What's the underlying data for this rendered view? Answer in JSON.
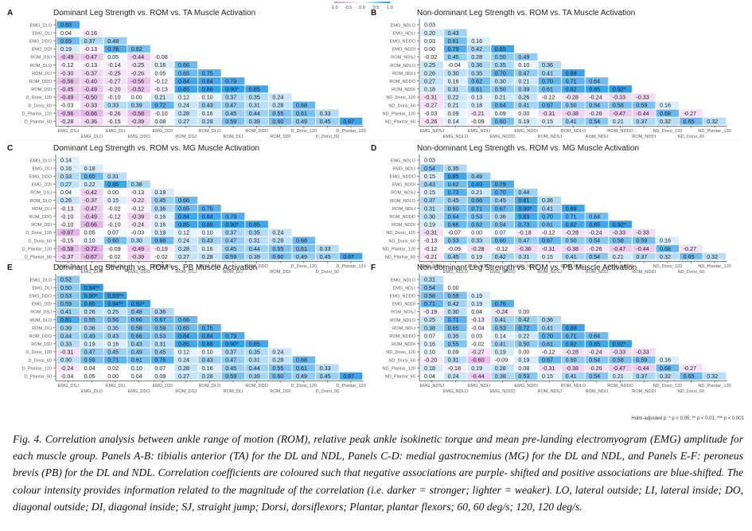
{
  "legend": {
    "ticks": [
      "-1.0",
      "-0.5",
      "0.0",
      "0.5",
      "1.0"
    ]
  },
  "significance_note": "Holm-adjusted p: * p < 0.05; ** p < 0.01; *** p < 0.001",
  "caption": {
    "label": "Fig. 4.",
    "text": "Correlation analysis between ankle range of motion (ROM), relative peak ankle isokinetic torque and mean pre-landing electromyogram (EMG) amplitude for each muscle group. Panels A-B: tibialis anterior (TA) for the DL and NDL, Panels C-D: medial gastrocnemius (MG) for the DL and NDL, and Panels E-F: peroneus brevis (PB) for the DL and NDL. Correlation coefficients are coloured such that negative associations are purple- shifted and positive associations are blue-shifted. The colour intensity provides information related to the magnitude of the correlation (i.e. darker = stronger; lighter = weaker). LO, lateral outside; LI, lateral inside; DO, diagonal outside; DI, diagonal inside; SJ, straight jump; Dorsi, dorsiflexors; Plantar, plantar flexors; 60, 60 deg/s; 120, 120 deg/s."
  },
  "colors": {
    "positive": "#1e96e8",
    "negative": "#d88ee0",
    "neutral": "#ffffff"
  },
  "chart_data": [
    {
      "type": "heatmap",
      "panel": "A",
      "title": "Dominant Leg Strength vs. ROM vs. TA Muscle Activation",
      "row_labels": [
        "EMG_DLO",
        "EMG_DLI",
        "EMG_DDO",
        "EMG_DDI",
        "ROM_DSJ",
        "ROM_DLO",
        "ROM_DLI",
        "ROM_DDO",
        "ROM_DDI",
        "D_Dorsi_120",
        "D_Dorsi_60",
        "D_Plantar_120",
        "D_Plantar_60"
      ],
      "col_labels": [
        "EMG_DSJ",
        "EMG_DLO",
        "EMG_DLI",
        "EMG_DDO",
        "EMG_DDI",
        "ROM_DSJ",
        "ROM_DLO",
        "ROM_DLI",
        "ROM_DDO",
        "ROM_DDI",
        "D_Dorsi_120",
        "D_Dorsi_60",
        "D_Plantar_120"
      ],
      "values": [
        [
          "0.83"
        ],
        [
          "0.04",
          "-0.16"
        ],
        [
          "0.65",
          "0.37",
          "0.48"
        ],
        [
          "0.19",
          "-0.13",
          "0.78",
          "0.62"
        ],
        [
          "-0.49",
          "-0.47",
          "0.05",
          "-0.44",
          "-0.08"
        ],
        [
          "-0.12",
          "-0.13",
          "-0.14",
          "-0.25",
          "0.16",
          "0.66"
        ],
        [
          "-0.30",
          "-0.37",
          "-0.25",
          "-0.26",
          "0.05",
          "0.65",
          "0.75"
        ],
        [
          "-0.56",
          "-0.40",
          "-0.27",
          "-0.56",
          "-0.12",
          "0.84",
          "0.84",
          "0.79"
        ],
        [
          "-0.45",
          "-0.49",
          "-0.20",
          "-0.52",
          "-0.13",
          "0.85",
          "0.88",
          "0.90*",
          "0.85"
        ],
        [
          "-0.49",
          "-0.50",
          "-0.10",
          "0.00",
          "0.21",
          "0.12",
          "0.10",
          "0.37",
          "0.35",
          "0.24"
        ],
        [
          "-0.03",
          "-0.33",
          "0.33",
          "0.39",
          "0.72",
          "0.24",
          "0.43",
          "0.47",
          "0.31",
          "0.28",
          "0.68"
        ],
        [
          "-0.56",
          "-0.66",
          "-0.26",
          "-0.58",
          "-0.10",
          "0.28",
          "0.16",
          "0.45",
          "0.44",
          "0.55",
          "0.61",
          "0.33"
        ],
        [
          "-0.28",
          "-0.36",
          "-0.15",
          "-0.39",
          "0.08",
          "0.27",
          "0.28",
          "0.59",
          "0.39",
          "0.60",
          "0.49",
          "0.45",
          "0.87"
        ]
      ],
      "scale": [
        -1.0,
        1.0
      ]
    },
    {
      "type": "heatmap",
      "panel": "B",
      "title": "Non-dominant Leg Strength vs. ROM vs. TA Muscle Activation",
      "row_labels": [
        "EMG_NDLO",
        "EMG_NDLI",
        "EMG_NDDO",
        "EMG_NDDI",
        "ROM_NDSJ",
        "ROM_NDLO",
        "ROM_NDLI",
        "ROM_NDDO",
        "ROM_NDDI",
        "ND_Dorsi_120",
        "ND_Dorsi_60",
        "ND_Plantar_120",
        "ND_Plantar_60"
      ],
      "col_labels": [
        "EMG_NDSJ",
        "EMG_NDLO",
        "EMG_NDLI",
        "EMG_NDDO",
        "EMG_NDDI",
        "ROM_NDSJ",
        "ROM_NDLO",
        "ROM_NDLI",
        "ROM_NDDO",
        "ROM_NDDI",
        "ND_Dorsi_120",
        "ND_Dorsi_60",
        "ND_Plantar_120"
      ],
      "values": [
        [
          "0.03"
        ],
        [
          "0.20",
          "0.43"
        ],
        [
          "0.03",
          "0.61",
          "0.16"
        ],
        [
          "0.00",
          "0.79",
          "0.42",
          "0.85"
        ],
        [
          "-0.02",
          "0.45",
          "0.28",
          "0.50",
          "0.49"
        ],
        [
          "0.25",
          "-0.04",
          "0.36",
          "0.35",
          "0.10",
          "0.36"
        ],
        [
          "0.26",
          "0.30",
          "0.35",
          "0.70",
          "0.47",
          "0.41",
          "0.88"
        ],
        [
          "0.27",
          "0.16",
          "0.62",
          "0.30",
          "0.21",
          "0.70",
          "0.71",
          "0.64"
        ],
        [
          "0.18",
          "0.31",
          "0.61",
          "0.50",
          "0.39",
          "0.61",
          "0.82",
          "0.85",
          "0.92*"
        ],
        [
          "-0.31",
          "0.22",
          "0.13",
          "0.21",
          "0.26",
          "-0.12",
          "-0.28",
          "-0.24",
          "-0.33",
          "-0.33"
        ],
        [
          "-0.27",
          "0.21",
          "0.18",
          "0.64",
          "0.41",
          "0.67",
          "0.50",
          "0.54",
          "0.58",
          "0.59",
          "0.16"
        ],
        [
          "-0.03",
          "0.09",
          "-0.21",
          "0.09",
          "0.00",
          "-0.31",
          "-0.38",
          "-0.26",
          "-0.47",
          "-0.44",
          "0.68",
          "-0.27"
        ],
        [
          "-0.26",
          "0.14",
          "-0.09",
          "0.60",
          "0.19",
          "0.15",
          "0.41",
          "0.54",
          "0.21",
          "0.37",
          "0.32",
          "0.65",
          "0.32"
        ]
      ],
      "scale": [
        -1.0,
        1.0
      ]
    },
    {
      "type": "heatmap",
      "panel": "C",
      "title": "Dominant Leg Strength vs. ROM vs. MG Muscle Activation",
      "row_labels": [
        "EMG_DLO",
        "EMG_DLI",
        "EMG_DDO",
        "EMG_DDI",
        "ROM_DSJ",
        "ROM_DLO",
        "ROM_DLI",
        "ROM_DDO",
        "ROM_DDI",
        "D_Dorsi_120",
        "D_Dorsi_60",
        "D_Plantar_120",
        "D_Plantar_60"
      ],
      "col_labels": [
        "EMG_DSJ",
        "EMG_DLO",
        "EMG_DLI",
        "EMG_DDO",
        "EMG_DDI",
        "ROM_DSJ",
        "ROM_DLO",
        "ROM_DLI",
        "ROM_DDO",
        "ROM_DDI",
        "D_Dorsi_120",
        "D_Dorsi_60",
        "D_Plantar_120"
      ],
      "values": [
        [
          "0.14"
        ],
        [
          "0.16",
          "0.18"
        ],
        [
          "0.33",
          "0.65",
          "0.31"
        ],
        [
          "0.27",
          "0.22",
          "0.85",
          "0.38"
        ],
        [
          "0.04",
          "-0.42",
          "0.00",
          "-0.13",
          "0.19"
        ],
        [
          "0.26",
          "-0.37",
          "0.15",
          "-0.22",
          "0.45",
          "0.66"
        ],
        [
          "-0.13",
          "-0.47",
          "-0.02",
          "-0.12",
          "0.36",
          "0.65",
          "0.75"
        ],
        [
          "-0.10",
          "-0.49",
          "-0.12",
          "-0.39",
          "0.16",
          "0.84",
          "0.84",
          "0.79"
        ],
        [
          "-0.10",
          "-0.66",
          "-0.10",
          "-0.24",
          "0.16",
          "0.85",
          "0.88",
          "0.90*",
          "0.85"
        ],
        [
          "-0.67",
          "0.05",
          "0.07",
          "-0.03",
          "0.19",
          "0.12",
          "0.10",
          "0.37",
          "0.35",
          "0.24"
        ],
        [
          "-0.15",
          "0.10",
          "0.60",
          "0.30",
          "0.66",
          "0.24",
          "0.43",
          "0.47",
          "0.31",
          "0.28",
          "0.68"
        ],
        [
          "-0.58",
          "-0.72",
          "-0.09",
          "-0.49",
          "-0.19",
          "0.28",
          "0.16",
          "0.45",
          "0.44",
          "0.55",
          "0.61",
          "0.33"
        ],
        [
          "-0.37",
          "-0.67",
          "-0.02",
          "-0.39",
          "-0.02",
          "0.27",
          "0.28",
          "0.59",
          "0.39",
          "0.60",
          "0.49",
          "0.45",
          "0.87"
        ]
      ],
      "scale": [
        -1.0,
        1.0
      ]
    },
    {
      "type": "heatmap",
      "panel": "D",
      "title": "Non-dominant Leg Strength vs. ROM vs. MG Muscle Activation",
      "row_labels": [
        "EMG_NDLO",
        "EMG_NDLI",
        "EMG_NDDO",
        "EMG_NDDI",
        "ROM_NDSJ",
        "ROM_NDLO",
        "ROM_NDLI",
        "ROM_NDDO",
        "ROM_NDDI",
        "ND_Dorsi_120",
        "ND_Dorsi_60",
        "ND_Plantar_120",
        "ND_Plantar_60"
      ],
      "col_labels": [
        "EMG_NDSJ",
        "EMG_NDLO",
        "EMG_NDLI",
        "EMG_NDDO",
        "EMG_NDDI",
        "ROM_NDSJ",
        "ROM_NDLO",
        "ROM_NDLI",
        "ROM_NDDO",
        "ROM_NDDI",
        "ND_Dorsi_120",
        "ND_Dorsi_60",
        "ND_Plantar_120"
      ],
      "values": [
        [
          "0.03"
        ],
        [
          "0.54",
          "0.35"
        ],
        [
          "0.15",
          "0.85",
          "0.49"
        ],
        [
          "0.43",
          "0.62",
          "0.83",
          "0.79"
        ],
        [
          "0.15",
          "0.73",
          "0.21",
          "0.70",
          "0.44"
        ],
        [
          "0.37",
          "0.45",
          "0.66",
          "0.45",
          "0.81",
          "0.36"
        ],
        [
          "0.31",
          "0.60",
          "0.71",
          "0.67",
          "0.90*",
          "0.41",
          "0.88"
        ],
        [
          "0.30",
          "0.64",
          "0.53",
          "0.36",
          "0.83",
          "0.70",
          "0.71",
          "0.64"
        ],
        [
          "0.19",
          "0.66",
          "0.62",
          "0.54",
          "0.73",
          "0.61",
          "0.82",
          "0.85",
          "0.92*"
        ],
        [
          "-0.31",
          "-0.07",
          "0.00",
          "0.07",
          "-0.18",
          "-0.12",
          "-0.28",
          "-0.24",
          "-0.33",
          "-0.33"
        ],
        [
          "-0.13",
          "0.53",
          "0.33",
          "0.60",
          "0.47",
          "0.67",
          "0.50",
          "0.54",
          "0.58",
          "0.59",
          "0.16"
        ],
        [
          "-0.12",
          "-0.09",
          "-0.28",
          "-0.12",
          "-0.36",
          "-0.31",
          "-0.38",
          "-0.26",
          "-0.47",
          "-0.44",
          "0.68",
          "-0.27"
        ],
        [
          "-0.21",
          "0.45",
          "0.19",
          "0.42",
          "0.31",
          "0.15",
          "0.41",
          "0.54",
          "0.21",
          "0.37",
          "0.32",
          "0.65",
          "0.32"
        ]
      ],
      "scale": [
        -1.0,
        1.0
      ]
    },
    {
      "type": "heatmap",
      "panel": "E",
      "title": "Dominant Leg Strength vs. ROM vs. PB Muscle Activation",
      "row_labels": [
        "EMG_DLO",
        "EMG_DLI",
        "EMG_DDO",
        "EMG_DDI",
        "ROM_DSJ",
        "ROM_DLO",
        "ROM_DLI",
        "ROM_DDO",
        "ROM_DDI",
        "D_Dorsi_120",
        "D_Dorsi_60",
        "D_Plantar_120",
        "D_Plantar_60"
      ],
      "col_labels": [
        "EMG_DSJ",
        "EMG_DLO",
        "EMG_DLI",
        "EMG_DDO",
        "EMG_DDI",
        "ROM_DSJ",
        "ROM_DLO",
        "ROM_DLI",
        "ROM_DDO",
        "ROM_DDI",
        "D_Dorsi_120",
        "D_Dorsi_60",
        "D_Plantar_120"
      ],
      "values": [
        [
          "0.52"
        ],
        [
          "0.50",
          "0.94**"
        ],
        [
          "0.53",
          "0.90*",
          "0.93**"
        ],
        [
          "0.59",
          "0.85",
          "0.94**",
          "0.92*"
        ],
        [
          "0.41",
          "0.26",
          "0.25",
          "0.48",
          "0.36"
        ],
        [
          "0.81",
          "0.55",
          "0.56",
          "0.66",
          "0.67",
          "0.66"
        ],
        [
          "0.39",
          "0.36",
          "0.35",
          "0.58",
          "0.59",
          "0.65",
          "0.75"
        ],
        [
          "0.44",
          "0.49",
          "0.43",
          "0.66",
          "0.53",
          "0.84",
          "0.84",
          "0.79"
        ],
        [
          "0.33",
          "0.19",
          "0.16",
          "0.43",
          "0.31",
          "0.85",
          "0.88",
          "0.90*",
          "0.85"
        ],
        [
          "-0.31",
          "0.47",
          "0.45",
          "0.49",
          "0.45",
          "0.12",
          "0.10",
          "0.37",
          "0.35",
          "0.24"
        ],
        [
          "0.30",
          "0.59",
          "0.71",
          "0.61",
          "0.76",
          "0.24",
          "0.43",
          "0.47",
          "0.31",
          "0.28",
          "0.68"
        ],
        [
          "-0.24",
          "0.04",
          "0.02",
          "0.10",
          "0.07",
          "0.28",
          "0.16",
          "0.45",
          "0.44",
          "0.55",
          "0.61",
          "0.33"
        ],
        [
          "-0.04",
          "0.05",
          "0.00",
          "0.04",
          "0.09",
          "0.27",
          "0.28",
          "0.59",
          "0.39",
          "0.60",
          "0.49",
          "0.45",
          "0.87"
        ]
      ],
      "scale": [
        -1.0,
        1.0
      ]
    },
    {
      "type": "heatmap",
      "panel": "F",
      "title": "Non-dominant Leg Strength vs. ROM vs. PB Muscle Activation",
      "row_labels": [
        "EMG_NDLO",
        "EMG_NDLI",
        "EMG_NDDO",
        "EMG_NDDI",
        "ROM_NDSJ",
        "ROM_NDLO",
        "ROM_NDLI",
        "ROM_NDDO",
        "ROM_NDDI",
        "ND_Dorsi_120",
        "ND_Dorsi_60",
        "ND_Plantar_120",
        "ND_Plantar_60"
      ],
      "col_labels": [
        "EMG_NDSJ",
        "EMG_NDLO",
        "EMG_NDLI",
        "EMG_NDDO",
        "EMG_NDDI",
        "ROM_NDSJ",
        "ROM_NDLO",
        "ROM_NDLI",
        "ROM_NDDO",
        "ROM_NDDI",
        "ND_Dorsi_120",
        "ND_Dorsi_60",
        "ND_Plantar_120"
      ],
      "values": [
        [
          "0.31"
        ],
        [
          "0.54",
          "0.00"
        ],
        [
          "0.58",
          "0.59",
          "0.19"
        ],
        [
          "0.71",
          "0.42",
          "0.19",
          "0.76"
        ],
        [
          "-0.19",
          "0.30",
          "0.04",
          "-0.24",
          "0.00"
        ],
        [
          "0.25",
          "0.71",
          "-0.13",
          "0.41",
          "0.42",
          "0.36"
        ],
        [
          "0.38",
          "0.65",
          "-0.04",
          "0.53",
          "0.72",
          "0.41",
          "0.88"
        ],
        [
          "0.07",
          "0.35",
          "0.03",
          "0.14",
          "0.22",
          "0.70",
          "0.71",
          "0.64"
        ],
        [
          "0.16",
          "0.55",
          "-0.02",
          "0.41",
          "0.50",
          "0.61",
          "0.82",
          "0.85",
          "0.92*"
        ],
        [
          "0.10",
          "0.09",
          "-0.27",
          "0.19",
          "0.00",
          "-0.12",
          "-0.28",
          "-0.24",
          "-0.33",
          "-0.33"
        ],
        [
          "-0.20",
          "0.31",
          "-0.60",
          "-0.09",
          "0.19",
          "0.67",
          "0.50",
          "0.54",
          "0.58",
          "0.59",
          "0.16"
        ],
        [
          "0.18",
          "-0.18",
          "0.19",
          "0.28",
          "0.08",
          "-0.31",
          "-0.38",
          "-0.26",
          "-0.47",
          "-0.44",
          "0.68",
          "-0.27"
        ],
        [
          "0.04",
          "0.24",
          "-0.44",
          "0.38",
          "0.53",
          "0.15",
          "0.41",
          "0.54",
          "0.21",
          "0.37",
          "0.32",
          "0.65",
          "0.32"
        ]
      ],
      "scale": [
        -1.0,
        1.0
      ]
    }
  ]
}
